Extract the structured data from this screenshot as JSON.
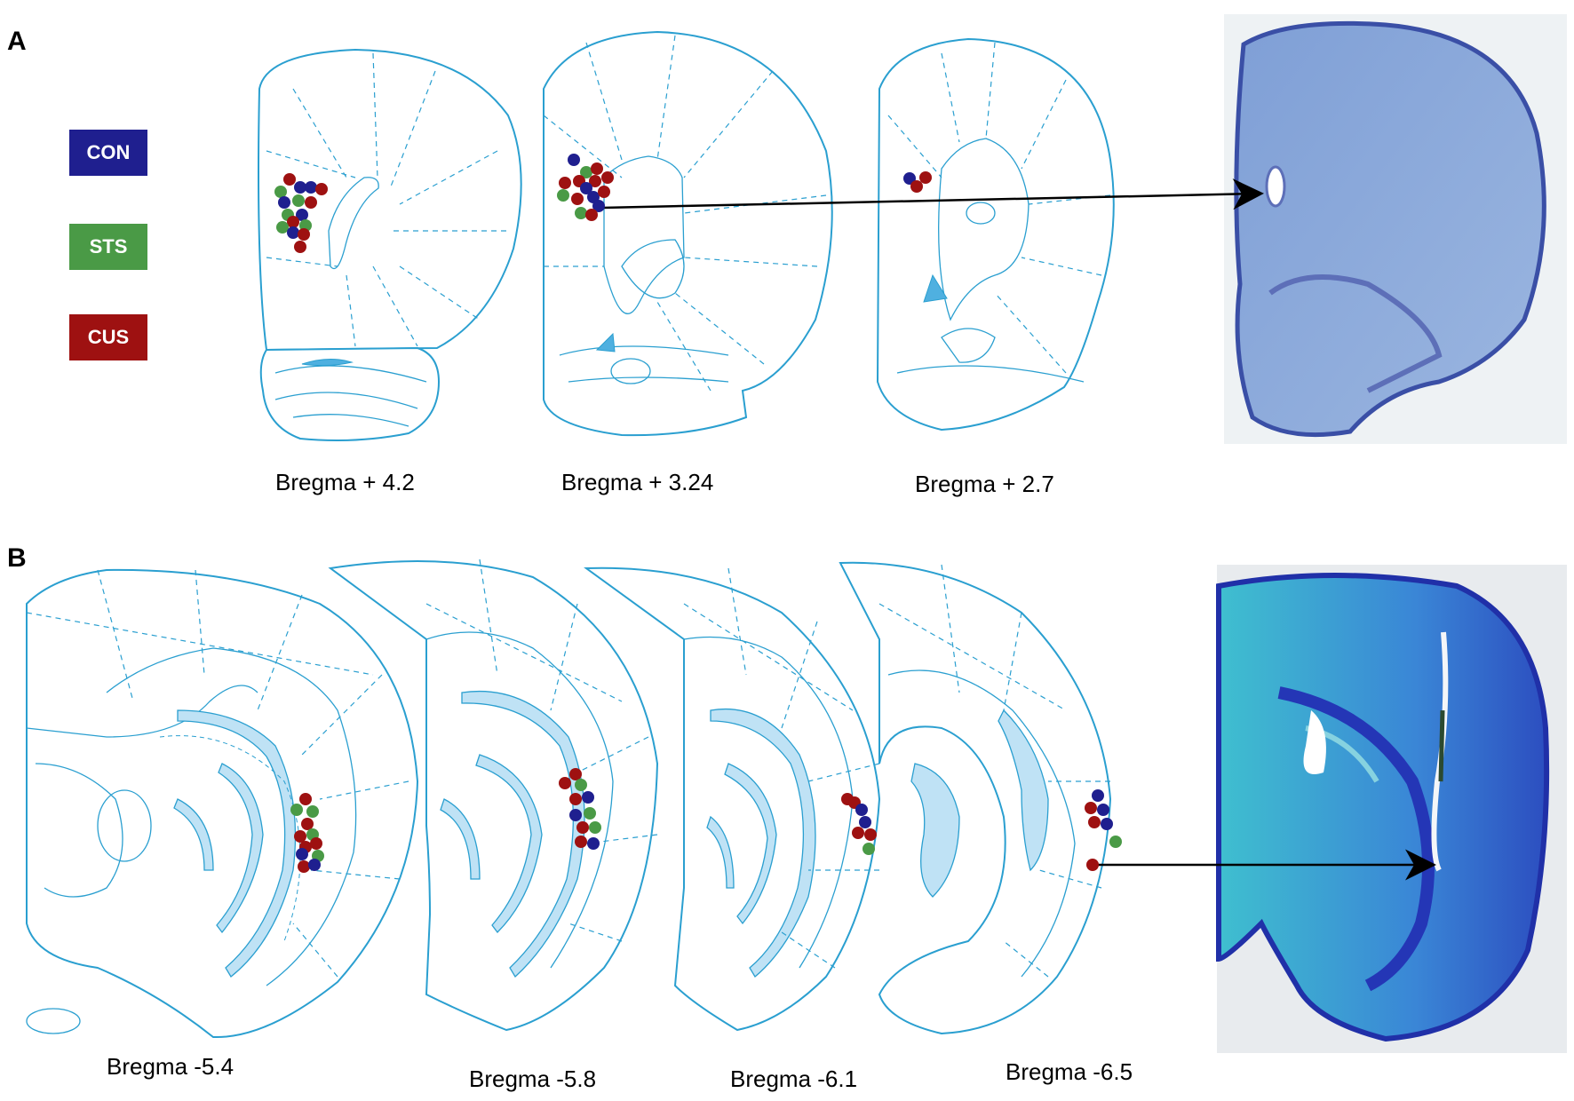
{
  "panels": {
    "a_label": "A",
    "b_label": "B"
  },
  "legend": [
    {
      "label": "CON",
      "color": "#1f1f8f"
    },
    {
      "label": "STS",
      "color": "#4a9a46"
    },
    {
      "label": "CUS",
      "color": "#9e1111"
    }
  ],
  "captions_a": [
    "Bregma + 4.2",
    "Bregma + 3.24",
    "Bregma + 2.7"
  ],
  "captions_b": [
    "Bregma -5.4",
    "Bregma -5.8",
    "Bregma -6.1",
    "Bregma -6.5"
  ],
  "colors": {
    "atlas_line": "#2a9fd0",
    "ventricle": "#4fb0e0",
    "hippocampus_fill": "#bfe2f5",
    "con": "#1f1f8f",
    "sts": "#4a9a46",
    "cus": "#9e1111"
  }
}
